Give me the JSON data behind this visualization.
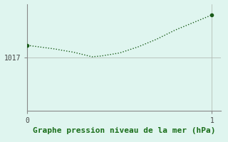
{
  "x": [
    0.0,
    0.05,
    0.1,
    0.15,
    0.2,
    0.25,
    0.3,
    0.35,
    0.4,
    0.5,
    0.6,
    0.7,
    0.8,
    0.9,
    1.0
  ],
  "y": [
    1017.8,
    1017.72,
    1017.64,
    1017.56,
    1017.45,
    1017.35,
    1017.2,
    1017.05,
    1017.1,
    1017.3,
    1017.7,
    1018.2,
    1018.8,
    1019.3,
    1019.8
  ],
  "line_color": "#1a5c1a",
  "marker_color": "#1a5c1a",
  "bg_color": "#dff5ef",
  "grid_color": "#b0b8b0",
  "axis_color": "#888888",
  "xlabel": "Graphe pression niveau de la mer (hPa)",
  "xlabel_color": "#1a6e1a",
  "xlim": [
    0.0,
    1.05
  ],
  "ylim": [
    1013.5,
    1020.5
  ],
  "xticks": [
    0,
    1
  ],
  "xtick_labels": [
    "0",
    "1"
  ],
  "yticks": [
    1017.0
  ],
  "ytick_labels": [
    "1017"
  ],
  "font_size": 7,
  "xlabel_fontsize": 8,
  "marker_size": 3
}
